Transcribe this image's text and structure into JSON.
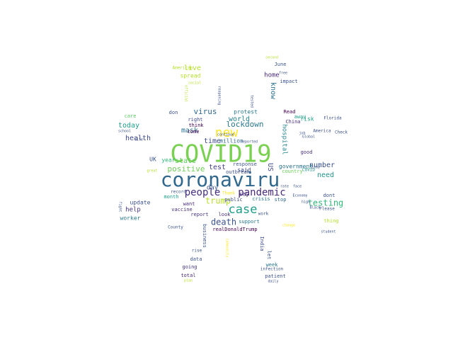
{
  "word_cloud": {
    "words": [
      {
        "text": "COVID19",
        "color": "#7ad151"
      },
      {
        "text": "coronaviru",
        "color": "#31688e"
      },
      {
        "text": "new",
        "color": "#fde725"
      },
      {
        "text": "case",
        "color": "#1f9e89"
      },
      {
        "text": "people",
        "color": "#472f7d"
      },
      {
        "text": "pandemic",
        "color": "#482878"
      },
      {
        "text": "death",
        "color": "#3b528b"
      },
      {
        "text": "lockdown",
        "color": "#2a788e"
      },
      {
        "text": "testing",
        "color": "#35b779"
      },
      {
        "text": "trump",
        "color": "#b5de2b"
      },
      {
        "text": "positive",
        "color": "#6ece58"
      },
      {
        "text": "virus",
        "color": "#31688e"
      },
      {
        "text": "world",
        "color": "#26828e"
      },
      {
        "text": "mask",
        "color": "#2c728e"
      },
      {
        "text": "health",
        "color": "#3e4989"
      },
      {
        "text": "test",
        "color": "#433e85"
      },
      {
        "text": "number",
        "color": "#3b528b"
      },
      {
        "text": "need",
        "color": "#21918c"
      },
      {
        "text": "state",
        "color": "#5ec962"
      },
      {
        "text": "today",
        "color": "#1f9e89"
      },
      {
        "text": "time",
        "color": "#3e4989"
      },
      {
        "text": "day",
        "color": "#3b528b"
      },
      {
        "text": "help",
        "color": "#46337e"
      },
      {
        "text": "live",
        "color": "#b5de2b"
      },
      {
        "text": "know",
        "color": "#2c728e"
      },
      {
        "text": "US",
        "color": "#3e4989"
      },
      {
        "text": "hospital",
        "color": "#26828e"
      },
      {
        "text": "home",
        "color": "#482878"
      },
      {
        "text": "government",
        "color": "#2c728e"
      },
      {
        "text": "million",
        "color": "#31688e"
      },
      {
        "text": "said",
        "color": "#3e4989"
      },
      {
        "text": "say",
        "color": "#46337e"
      },
      {
        "text": "year",
        "color": "#35b779"
      },
      {
        "text": "UK",
        "color": "#3b528b"
      },
      {
        "text": "update",
        "color": "#3b528b"
      },
      {
        "text": "worker",
        "color": "#2a788e"
      },
      {
        "text": "risk",
        "color": "#20a486"
      },
      {
        "text": "away",
        "color": "#1f9e89"
      },
      {
        "text": "good",
        "color": "#472f7d"
      },
      {
        "text": "spread",
        "color": "#b5de2b"
      },
      {
        "text": "American",
        "color": "#b5de2b"
      },
      {
        "text": "June",
        "color": "#3b528b"
      },
      {
        "text": "impact",
        "color": "#3b528b"
      },
      {
        "text": "protest",
        "color": "#2a788e"
      },
      {
        "text": "Read",
        "color": "#440154"
      },
      {
        "text": "care",
        "color": "#5ec962"
      },
      {
        "text": "don",
        "color": "#3b528b"
      },
      {
        "text": "think",
        "color": "#440154"
      },
      {
        "text": "right",
        "color": "#3e4989"
      },
      {
        "text": "come",
        "color": "#440154"
      },
      {
        "text": "response",
        "color": "#3b528b"
      },
      {
        "text": "outbreak",
        "color": "#3b528b"
      },
      {
        "text": "country",
        "color": "#6ece58"
      },
      {
        "text": "COVID",
        "color": "#21918c"
      },
      {
        "text": "China",
        "color": "#472f7d"
      },
      {
        "text": "dont",
        "color": "#3b528b"
      },
      {
        "text": "thing",
        "color": "#b5de2b"
      },
      {
        "text": "report",
        "color": "#46337e"
      },
      {
        "text": "support",
        "color": "#2a788e"
      },
      {
        "text": "work",
        "color": "#3b528b"
      },
      {
        "text": "want",
        "color": "#482878"
      },
      {
        "text": "look",
        "color": "#472f7d"
      },
      {
        "text": "public",
        "color": "#3e4989"
      },
      {
        "text": "crisis",
        "color": "#2a788e"
      },
      {
        "text": "stop",
        "color": "#31688e"
      },
      {
        "text": "Thank",
        "color": "#fde725"
      },
      {
        "text": "vaccine",
        "color": "#472f7d"
      },
      {
        "text": "month",
        "color": "#1f9e89"
      },
      {
        "text": "record",
        "color": "#3b528b"
      },
      {
        "text": "business",
        "color": "#3b528b"
      },
      {
        "text": "realDonaldTrump",
        "color": "#440154"
      },
      {
        "text": "India",
        "color": "#3e4989"
      },
      {
        "text": "let",
        "color": "#3b528b"
      },
      {
        "text": "data",
        "color": "#3b528b"
      },
      {
        "text": "going",
        "color": "#46337e"
      },
      {
        "text": "rise",
        "color": "#3b528b"
      },
      {
        "text": "total",
        "color": "#482878"
      },
      {
        "text": "week",
        "color": "#2a788e"
      },
      {
        "text": "patient",
        "color": "#3b528b"
      },
      {
        "text": "infection",
        "color": "#3b528b"
      },
      {
        "text": "daily",
        "color": "#3b528b"
      },
      {
        "text": "County",
        "color": "#3b528b"
      },
      {
        "text": "Florida",
        "color": "#3b528b"
      },
      {
        "text": "America",
        "color": "#3b528b"
      },
      {
        "text": "Check",
        "color": "#3b528b"
      },
      {
        "text": "school",
        "color": "#3b528b"
      },
      {
        "text": "life",
        "color": "#3b528b"
      },
      {
        "text": "Please",
        "color": "#3b528b"
      },
      {
        "text": "second",
        "color": "#b5de2b"
      },
      {
        "text": "social",
        "color": "#b5de2b"
      },
      {
        "text": "official",
        "color": "#b5de2b"
      },
      {
        "text": "reopening",
        "color": "#3b528b"
      },
      {
        "text": "tested",
        "color": "#3b528b"
      },
      {
        "text": "Economy",
        "color": "#3b528b"
      },
      {
        "text": "student",
        "color": "#3b528b"
      },
      {
        "text": "change",
        "color": "#fde725"
      },
      {
        "text": "community",
        "color": "#fde725"
      },
      {
        "text": "Global",
        "color": "#3b528b"
      },
      {
        "text": "free",
        "color": "#3b528b"
      },
      {
        "text": "job",
        "color": "#3b528b"
      },
      {
        "text": "fight",
        "color": "#3b528b"
      },
      {
        "text": "great",
        "color": "#b5de2b"
      },
      {
        "text": "plan",
        "color": "#b5de2b"
      },
      {
        "text": "continue",
        "color": "#3b528b"
      },
      {
        "text": "reported",
        "color": "#3b528b"
      },
      {
        "text": "face",
        "color": "#3b528b"
      },
      {
        "text": "rate",
        "color": "#3b528b"
      },
      {
        "text": "high",
        "color": "#3b528b"
      },
      {
        "text": "Black",
        "color": "#3b528b"
      },
      {
        "text": "stay",
        "color": "#3b528b"
      }
    ]
  }
}
